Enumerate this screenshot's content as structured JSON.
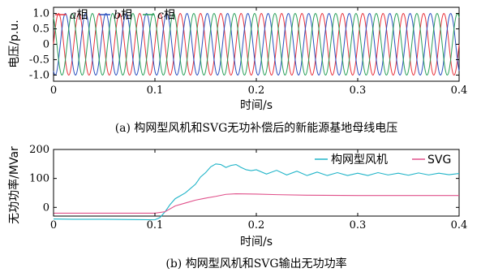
{
  "chart_data": [
    {
      "type": "line",
      "caption": "(a) 构网型风机和SVG无功补偿后的新能源基地母线电压",
      "xlabel": "时间/s",
      "ylabel": "电压/p.u.",
      "xlim": [
        0,
        0.4
      ],
      "ylim": [
        -1.2,
        1.2
      ],
      "xticks": [
        "0",
        "0.1",
        "0.2",
        "0.3",
        "0.4"
      ],
      "yticks": [
        "-1.0",
        "-0.5",
        "0",
        "0.5",
        "1.0"
      ],
      "frequency_hz": 50,
      "amplitude_pu": 1.0,
      "legend_position": "top-left",
      "series": [
        {
          "name_italic": "a",
          "name_suffix": "相",
          "phase_deg": 0,
          "color": "#e8323c"
        },
        {
          "name_italic": "b",
          "name_suffix": "相",
          "phase_deg": -120,
          "color": "#2a4fbf"
        },
        {
          "name_italic": "c",
          "name_suffix": "相",
          "phase_deg": 120,
          "color": "#2aa05a"
        }
      ]
    },
    {
      "type": "line",
      "caption": "(b) 构网型风机和SVG输出无功功率",
      "xlabel": "时间/s",
      "ylabel": "无功功率/MVar",
      "xlim": [
        0,
        0.4
      ],
      "ylim": [
        -30,
        200
      ],
      "xticks": [
        "0",
        "0.1",
        "0.2",
        "0.3",
        "0.4"
      ],
      "yticks": [
        "0",
        "100",
        "200"
      ],
      "legend_position": "top-right",
      "series": [
        {
          "name": "构网型风机",
          "color": "#1fb4c8",
          "points": [
            [
              0,
              -40
            ],
            [
              0.02,
              -41
            ],
            [
              0.05,
              -41
            ],
            [
              0.08,
              -42
            ],
            [
              0.1,
              -43
            ],
            [
              0.105,
              -35
            ],
            [
              0.11,
              -15
            ],
            [
              0.115,
              10
            ],
            [
              0.12,
              30
            ],
            [
              0.13,
              50
            ],
            [
              0.14,
              80
            ],
            [
              0.145,
              105
            ],
            [
              0.15,
              120
            ],
            [
              0.155,
              140
            ],
            [
              0.16,
              150
            ],
            [
              0.165,
              148
            ],
            [
              0.17,
              138
            ],
            [
              0.175,
              145
            ],
            [
              0.18,
              148
            ],
            [
              0.185,
              138
            ],
            [
              0.19,
              130
            ],
            [
              0.195,
              127
            ],
            [
              0.2,
              130
            ],
            [
              0.21,
              115
            ],
            [
              0.22,
              128
            ],
            [
              0.23,
              112
            ],
            [
              0.24,
              125
            ],
            [
              0.25,
              110
            ],
            [
              0.26,
              122
            ],
            [
              0.27,
              110
            ],
            [
              0.28,
              120
            ],
            [
              0.29,
              110
            ],
            [
              0.3,
              118
            ],
            [
              0.31,
              110
            ],
            [
              0.32,
              120
            ],
            [
              0.33,
              112
            ],
            [
              0.34,
              118
            ],
            [
              0.35,
              111
            ],
            [
              0.36,
              119
            ],
            [
              0.37,
              112
            ],
            [
              0.38,
              118
            ],
            [
              0.39,
              113
            ],
            [
              0.4,
              117
            ]
          ]
        },
        {
          "name": "SVG",
          "color": "#e0508a",
          "points": [
            [
              0,
              -20
            ],
            [
              0.05,
              -20
            ],
            [
              0.1,
              -20
            ],
            [
              0.11,
              -15
            ],
            [
              0.12,
              5
            ],
            [
              0.13,
              15
            ],
            [
              0.14,
              25
            ],
            [
              0.15,
              32
            ],
            [
              0.16,
              38
            ],
            [
              0.17,
              45
            ],
            [
              0.18,
              47
            ],
            [
              0.2,
              46
            ],
            [
              0.22,
              44
            ],
            [
              0.25,
              42
            ],
            [
              0.3,
              41
            ],
            [
              0.35,
              41
            ],
            [
              0.4,
              41
            ]
          ]
        }
      ]
    }
  ]
}
